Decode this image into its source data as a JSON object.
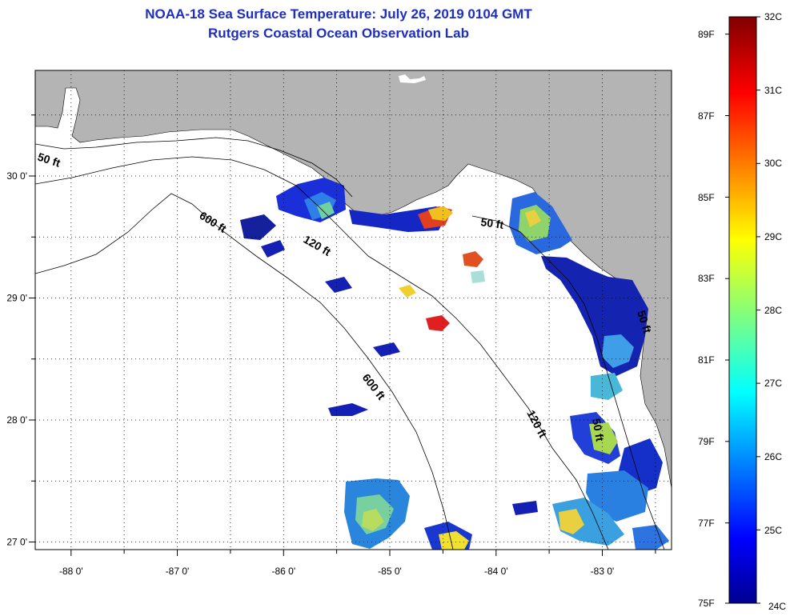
{
  "title": "NOAA-18 Sea Surface Temperature:  July 26, 2019 0104 GMT",
  "subtitle": "Rutgers Coastal Ocean Observation Lab",
  "map": {
    "lon_ticks": [
      "-88 0'",
      "-87 0'",
      "-86 0'",
      "-85 0'",
      "-84 0'",
      "-83 0'"
    ],
    "lat_ticks": [
      "30 0'",
      "29 0'",
      "28 0'",
      "27 0'"
    ],
    "contour_labels": [
      "50 ft",
      "600 ft",
      "120 ft",
      "50 ft",
      "600 ft",
      "120 ft",
      "50 ft",
      "50 ft"
    ],
    "colors": {
      "land": "#b4b4b4",
      "ocean_no_data": "#ffffff",
      "grid": "#000000"
    }
  },
  "colorbar": {
    "fahrenheit_labels": [
      "89F",
      "87F",
      "85F",
      "83F",
      "81F",
      "79F",
      "77F",
      "75F"
    ],
    "celsius_labels": [
      "32C",
      "31C",
      "30C",
      "29C",
      "28C",
      "27C",
      "26C",
      "25C",
      "24C"
    ],
    "range_c": [
      24,
      32
    ],
    "colormap": "jet"
  }
}
